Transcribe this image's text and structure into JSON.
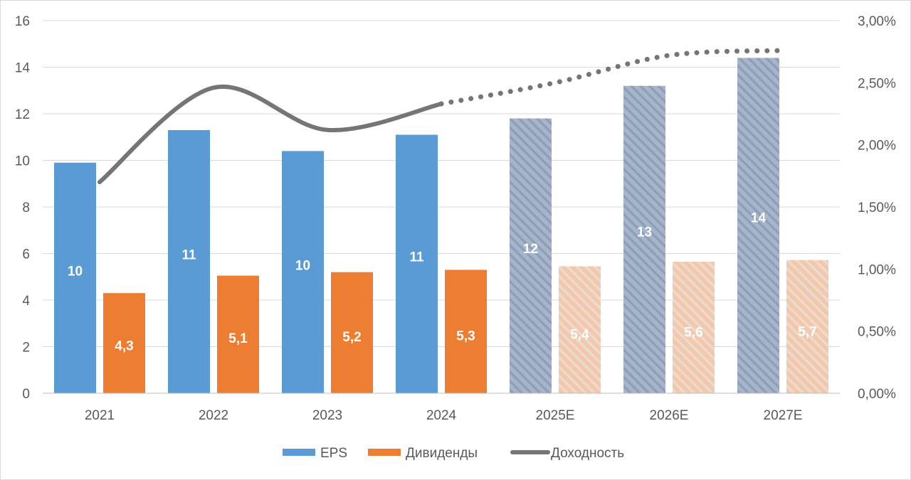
{
  "chart_data": {
    "type": "bar",
    "categories": [
      "2021",
      "2022",
      "2023",
      "2024",
      "2025E",
      "2026E",
      "2027E"
    ],
    "forecast_from_index": 4,
    "series": [
      {
        "name": "EPS",
        "kind": "bar",
        "axis": "left",
        "color": "#5b9bd5",
        "forecast_color": "#a7b5cc",
        "values": [
          9.9,
          11.3,
          10.4,
          11.1,
          11.8,
          13.2,
          14.4
        ],
        "labels": [
          "10",
          "11",
          "10",
          "11",
          "12",
          "13",
          "14"
        ]
      },
      {
        "name": "Дивиденды",
        "kind": "bar",
        "axis": "left",
        "color": "#ed7d31",
        "forecast_color": "#f4c6aa",
        "values": [
          4.3,
          5.05,
          5.2,
          5.3,
          5.45,
          5.65,
          5.72
        ],
        "labels": [
          "4,3",
          "5,1",
          "5,2",
          "5,3",
          "5,4",
          "5,6",
          "5,7"
        ]
      },
      {
        "name": "Доходность",
        "kind": "line",
        "axis": "right",
        "color": "#757575",
        "values": [
          1.7,
          2.46,
          2.12,
          2.33,
          2.5,
          2.72,
          2.76
        ]
      }
    ],
    "y_left": {
      "min": 0,
      "max": 16,
      "ticks": [
        "0",
        "2",
        "4",
        "6",
        "8",
        "10",
        "12",
        "14",
        "16"
      ]
    },
    "y_right": {
      "min": 0,
      "max": 3,
      "ticks": [
        "0,00%",
        "0,50%",
        "1,00%",
        "1,50%",
        "2,00%",
        "2,50%",
        "3,00%"
      ]
    },
    "grid": true,
    "legend_position": "bottom"
  }
}
